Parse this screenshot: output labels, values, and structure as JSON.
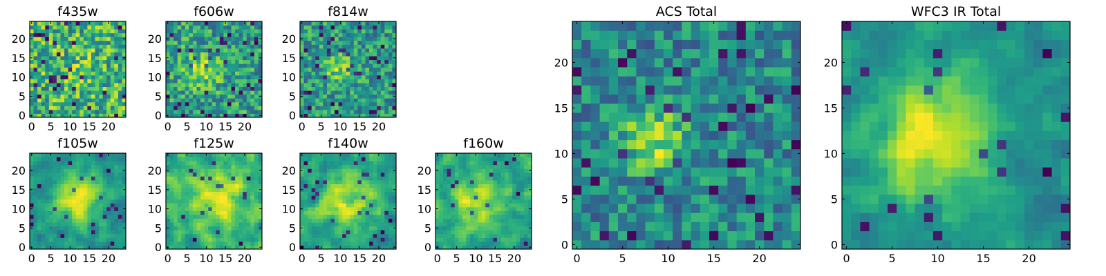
{
  "chart_data": [
    {
      "type": "heatmap",
      "title": "f435w",
      "size": 25,
      "seed": 11,
      "peak": [
        12,
        11
      ],
      "amplitude": 0.05,
      "sigma": 4.0,
      "smooth": false,
      "xticks": [
        0,
        5,
        10,
        15,
        20
      ],
      "yticks": [
        0,
        5,
        10,
        15,
        20
      ],
      "xlim": [
        -0.5,
        24.5
      ],
      "ylim": [
        -0.5,
        24.5
      ],
      "colormap": "viridis"
    },
    {
      "type": "heatmap",
      "title": "f606w",
      "size": 25,
      "seed": 22,
      "peak": [
        9,
        12
      ],
      "amplitude": 0.35,
      "sigma": 3.0,
      "smooth": false,
      "xticks": [
        0,
        5,
        10,
        15,
        20
      ],
      "yticks": [
        0,
        5,
        10,
        15,
        20
      ],
      "xlim": [
        -0.5,
        24.5
      ],
      "ylim": [
        -0.5,
        24.5
      ],
      "colormap": "viridis"
    },
    {
      "type": "heatmap",
      "title": "f814w",
      "size": 25,
      "seed": 33,
      "peak": [
        10,
        12
      ],
      "amplitude": 0.3,
      "sigma": 3.0,
      "smooth": false,
      "xticks": [
        0,
        5,
        10,
        15,
        20
      ],
      "yticks": [
        0,
        5,
        10,
        15,
        20
      ],
      "xlim": [
        -0.5,
        24.5
      ],
      "ylim": [
        -0.5,
        24.5
      ],
      "colormap": "viridis"
    },
    {
      "type": "heatmap",
      "title": "f105w",
      "size": 25,
      "seed": 44,
      "peak": [
        12,
        13
      ],
      "amplitude": 0.45,
      "sigma": 4.5,
      "smooth": true,
      "xticks": [
        0,
        5,
        10,
        15,
        20
      ],
      "yticks": [
        0,
        5,
        10,
        15,
        20
      ],
      "xlim": [
        -0.5,
        24.5
      ],
      "ylim": [
        -0.5,
        24.5
      ],
      "colormap": "viridis"
    },
    {
      "type": "heatmap",
      "title": "f125w",
      "size": 25,
      "seed": 55,
      "peak": [
        12,
        13
      ],
      "amplitude": 0.3,
      "sigma": 5.0,
      "smooth": true,
      "xticks": [
        0,
        5,
        10,
        15,
        20
      ],
      "yticks": [
        0,
        5,
        10,
        15,
        20
      ],
      "xlim": [
        -0.5,
        24.5
      ],
      "ylim": [
        -0.5,
        24.5
      ],
      "colormap": "viridis"
    },
    {
      "type": "heatmap",
      "title": "f140w",
      "size": 25,
      "seed": 66,
      "peak": [
        12,
        12
      ],
      "amplitude": 0.35,
      "sigma": 5.0,
      "smooth": true,
      "xticks": [
        0,
        5,
        10,
        15,
        20
      ],
      "yticks": [
        0,
        5,
        10,
        15,
        20
      ],
      "xlim": [
        -0.5,
        24.5
      ],
      "ylim": [
        -0.5,
        24.5
      ],
      "colormap": "viridis"
    },
    {
      "type": "heatmap",
      "title": "f160w",
      "size": 25,
      "seed": 77,
      "peak": [
        10,
        12
      ],
      "amplitude": 0.3,
      "sigma": 4.0,
      "smooth": true,
      "xticks": [
        0,
        5,
        10,
        15,
        20
      ],
      "yticks": [
        0,
        5,
        10,
        15,
        20
      ],
      "xlim": [
        -0.5,
        24.5
      ],
      "ylim": [
        -0.5,
        24.5
      ],
      "colormap": "viridis"
    },
    {
      "type": "heatmap",
      "title": "ACS Total",
      "size": 25,
      "seed": 88,
      "peak": [
        8.5,
        11.5
      ],
      "amplitude": 0.5,
      "sigma": 2.5,
      "smooth": false,
      "xticks": [
        0,
        10,
        20
      ],
      "xticks_extra": [
        5,
        15
      ],
      "yticks": [
        0,
        5,
        10,
        15,
        20
      ],
      "xlim": [
        -0.5,
        24.5
      ],
      "ylim": [
        -0.5,
        24.5
      ],
      "colormap": "viridis"
    },
    {
      "type": "heatmap",
      "title": "WFC3 IR Total",
      "size": 25,
      "seed": 99,
      "peak": [
        9,
        12
      ],
      "amplitude": 0.55,
      "sigma": 5.0,
      "smooth": true,
      "xticks": [
        0,
        10,
        20
      ],
      "xticks_extra": [
        5,
        15
      ],
      "yticks": [
        0,
        5,
        10,
        15,
        20
      ],
      "xlim": [
        -0.5,
        24.5
      ],
      "ylim": [
        -0.5,
        24.5
      ],
      "colormap": "viridis"
    }
  ]
}
